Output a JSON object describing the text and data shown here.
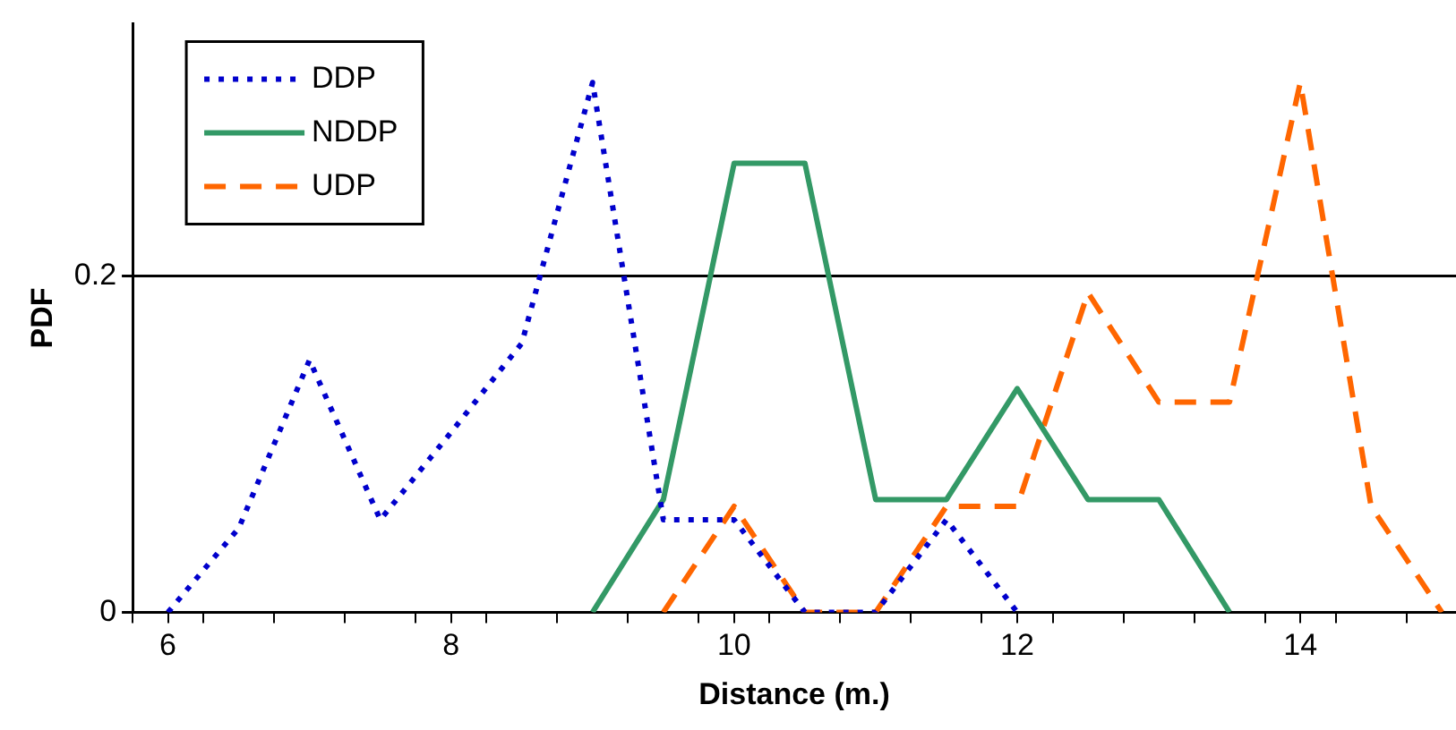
{
  "chart_data": {
    "type": "line",
    "xlabel": "Distance (m.)",
    "ylabel": "PDF",
    "xlim": [
      5.75,
      15.1
    ],
    "ylim": [
      0,
      0.35
    ],
    "xticks": [
      {
        "value": 5.75,
        "label": null
      },
      6,
      {
        "value": 6.25,
        "label": null
      },
      {
        "value": 6.75,
        "label": null
      },
      {
        "value": 7.25,
        "label": null
      },
      {
        "value": 7.75,
        "label": null
      },
      8,
      {
        "value": 8.25,
        "label": null
      },
      {
        "value": 8.75,
        "label": null
      },
      {
        "value": 9.25,
        "label": null
      },
      {
        "value": 9.75,
        "label": null
      },
      10,
      {
        "value": 10.25,
        "label": null
      },
      {
        "value": 10.75,
        "label": null
      },
      {
        "value": 11.25,
        "label": null
      },
      {
        "value": 11.75,
        "label": null
      },
      12,
      {
        "value": 12.25,
        "label": null
      },
      {
        "value": 12.75,
        "label": null
      },
      {
        "value": 13.25,
        "label": null
      },
      {
        "value": 13.75,
        "label": null
      },
      14,
      {
        "value": 14.25,
        "label": null
      },
      {
        "value": 14.75,
        "label": null
      }
    ],
    "yticks": [
      0,
      0.2
    ],
    "grid": "y",
    "legend": "top left",
    "marker": "none",
    "series": [
      {
        "name": "DDP",
        "color": "#0000cc",
        "line_style": "dotted",
        "x": [
          6,
          6.5,
          7,
          7.5,
          8,
          8.5,
          9,
          9.5,
          10,
          10.5,
          11,
          11.5,
          12
        ],
        "values": [
          0,
          0.05,
          0.15,
          0.055,
          0.107,
          0.16,
          0.315,
          0.055,
          0.055,
          0,
          0,
          0.055,
          0
        ]
      },
      {
        "name": "NDDP",
        "color": "#339966",
        "line_style": "solid",
        "x": [
          9,
          9.5,
          10,
          10.5,
          11,
          11.5,
          12,
          12.5,
          13,
          13.5
        ],
        "values": [
          0,
          0.067,
          0.267,
          0.267,
          0.067,
          0.067,
          0.133,
          0.067,
          0.067,
          0
        ]
      },
      {
        "name": "UDP",
        "color": "#ff6600",
        "line_style": "dashed",
        "x": [
          9.5,
          10,
          10.5,
          11,
          11.5,
          12,
          12.5,
          13,
          13.5,
          14,
          14.5,
          15
        ],
        "values": [
          0,
          0.063,
          0,
          0,
          0.063,
          0.063,
          0.19,
          0.125,
          0.125,
          0.315,
          0.063,
          0
        ]
      }
    ]
  }
}
